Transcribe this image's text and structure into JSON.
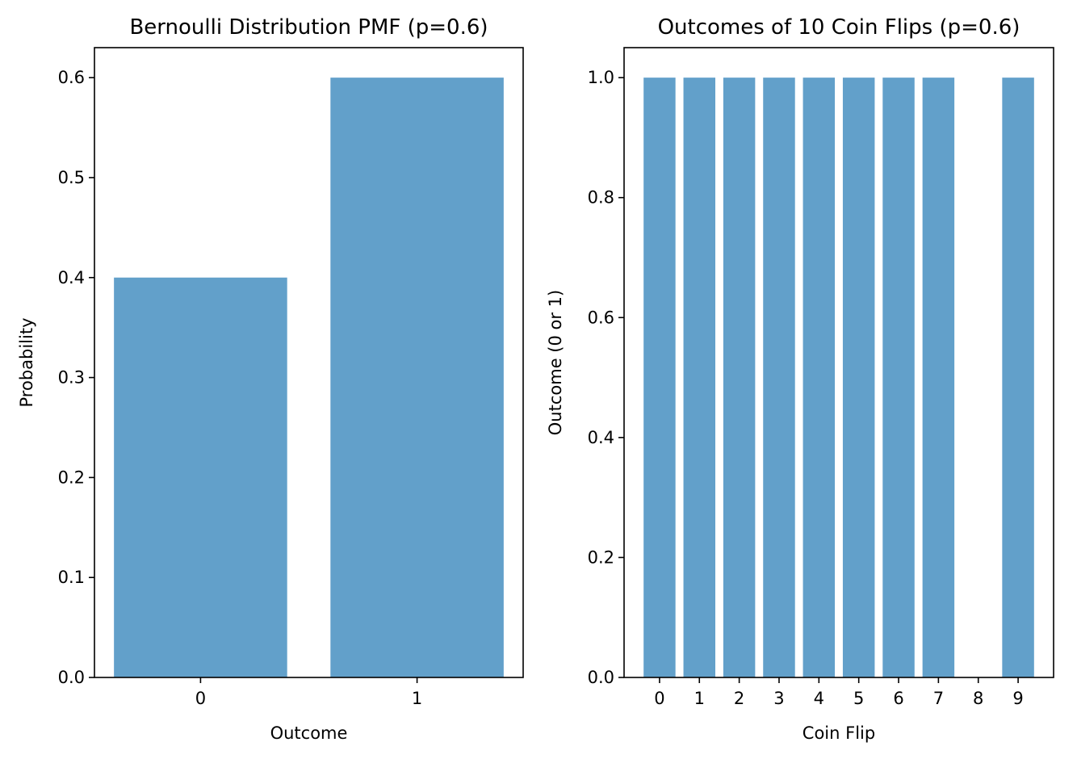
{
  "chart_data": [
    {
      "type": "bar",
      "title": "Bernoulli Distribution PMF (p=0.6)",
      "xlabel": "Outcome",
      "ylabel": "Probability",
      "categories": [
        "0",
        "1"
      ],
      "values": [
        0.4,
        0.6
      ],
      "ylim": [
        0,
        0.63
      ],
      "yticks": [
        "0.0",
        "0.1",
        "0.2",
        "0.3",
        "0.4",
        "0.5",
        "0.6"
      ],
      "bar_color": "#1f77b4",
      "bar_alpha": 0.7,
      "grid": false,
      "legend": "none"
    },
    {
      "type": "bar",
      "title": "Outcomes of 10 Coin Flips (p=0.6)",
      "xlabel": "Coin Flip",
      "ylabel": "Outcome (0 or 1)",
      "categories": [
        "0",
        "1",
        "2",
        "3",
        "4",
        "5",
        "6",
        "7",
        "8",
        "9"
      ],
      "values": [
        1,
        1,
        1,
        1,
        1,
        1,
        1,
        1,
        0,
        1
      ],
      "ylim": [
        0,
        1.05
      ],
      "yticks": [
        "0.0",
        "0.2",
        "0.4",
        "0.6",
        "0.8",
        "1.0"
      ],
      "bar_color": "#1f77b4",
      "bar_alpha": 0.7,
      "grid": false,
      "legend": "none"
    }
  ]
}
